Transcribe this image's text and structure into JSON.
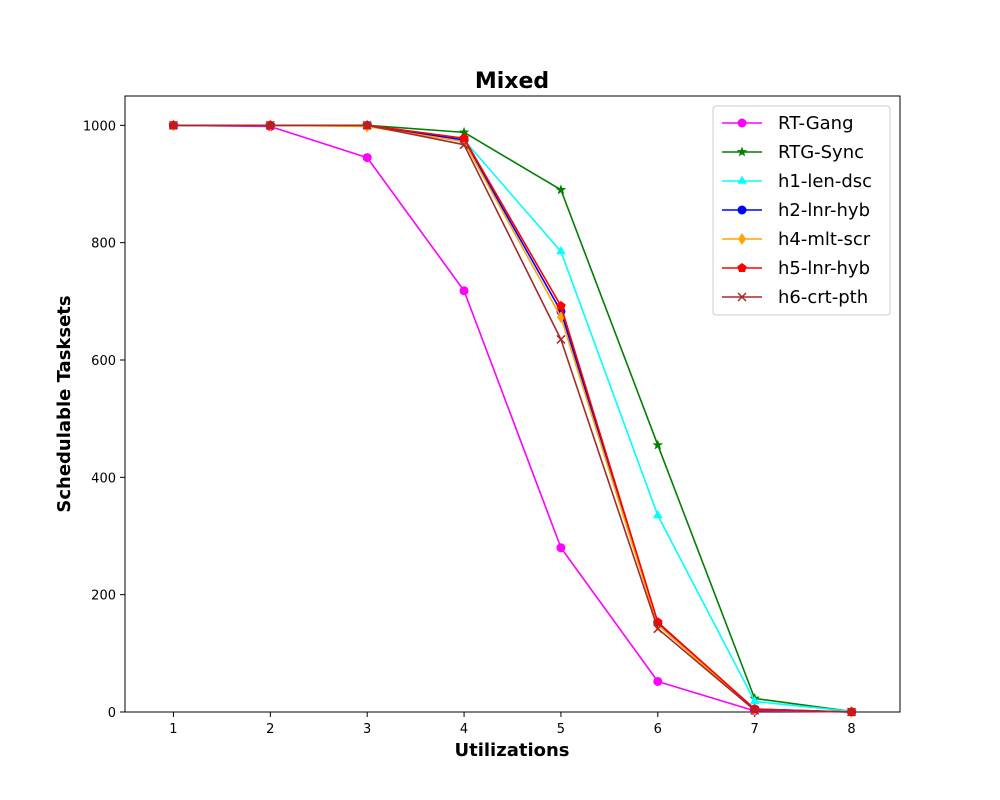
{
  "chart_data": {
    "type": "line",
    "title": "Mixed",
    "xlabel": "Utilizations",
    "ylabel": "Schedulable Tasksets",
    "x": [
      1,
      2,
      3,
      4,
      5,
      6,
      7,
      8
    ],
    "xlim": [
      0.5,
      8.5
    ],
    "ylim": [
      0,
      1050
    ],
    "xticks": [
      1,
      2,
      3,
      4,
      5,
      6,
      7,
      8
    ],
    "yticks": [
      0,
      200,
      400,
      600,
      800,
      1000
    ],
    "grid": false,
    "legend_position": "top-right",
    "series": [
      {
        "name": "RT-Gang",
        "color": "#ff00ff",
        "marker": "circle",
        "values": [
          1000,
          998,
          945,
          718,
          280,
          52,
          2,
          0
        ]
      },
      {
        "name": "RTG-Sync",
        "color": "#008000",
        "marker": "star",
        "values": [
          1000,
          1000,
          1000,
          988,
          890,
          455,
          23,
          1
        ]
      },
      {
        "name": "h1-len-dsc",
        "color": "#00ffff",
        "marker": "triangle",
        "values": [
          1000,
          1000,
          1000,
          975,
          785,
          335,
          18,
          1
        ]
      },
      {
        "name": "h2-lnr-hyb",
        "color": "#0000ff",
        "marker": "circle",
        "values": [
          1000,
          1000,
          1000,
          975,
          683,
          152,
          5,
          0
        ]
      },
      {
        "name": "h4-mlt-scr",
        "color": "#ffa500",
        "marker": "diamond",
        "values": [
          1000,
          1000,
          998,
          972,
          673,
          148,
          4,
          0
        ]
      },
      {
        "name": "h5-lnr-hyb",
        "color": "#ff0000",
        "marker": "pentagon",
        "values": [
          1000,
          1000,
          1000,
          978,
          692,
          153,
          5,
          0
        ]
      },
      {
        "name": "h6-crt-pth",
        "color": "#a52a2a",
        "marker": "x",
        "values": [
          1000,
          1000,
          1000,
          967,
          635,
          142,
          3,
          0
        ]
      }
    ]
  }
}
